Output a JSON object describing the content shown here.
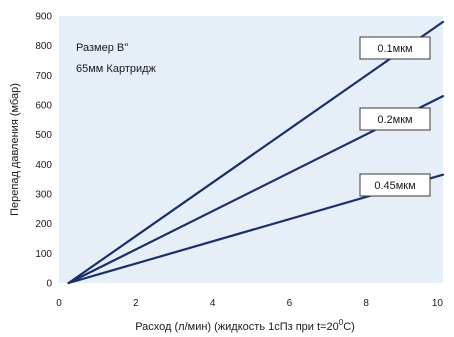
{
  "chart_data": {
    "type": "line",
    "xlabel": "Расход (л/мин) (жидкость 1сПз при t=20",
    "xlabel_sup": "0",
    "xlabel_end": "C)",
    "ylabel": "Перепад давления (мбар)",
    "annotation": [
      "Размер В''",
      "65мм Картридж"
    ],
    "xlim": [
      0,
      10
    ],
    "ylim": [
      0,
      900
    ],
    "x_ticks": [
      "0",
      "2",
      "4",
      "6",
      "8",
      "10"
    ],
    "y_ticks": [
      "0",
      "100",
      "200",
      "300",
      "400",
      "500",
      "600",
      "700",
      "800",
      "900"
    ],
    "grid": false,
    "colors": {
      "plot_background": "#e6eff8",
      "line": "#1b2f6b",
      "label_box_border": "#3a3a3a"
    },
    "series": [
      {
        "name": "0.1мкм",
        "x": [
          0.25,
          10
        ],
        "y": [
          0,
          880
        ]
      },
      {
        "name": "0.2мкм",
        "x": [
          0.25,
          10
        ],
        "y": [
          0,
          630
        ]
      },
      {
        "name": "0.45мкм",
        "x": [
          0.25,
          10
        ],
        "y": [
          0,
          365
        ]
      }
    ]
  }
}
